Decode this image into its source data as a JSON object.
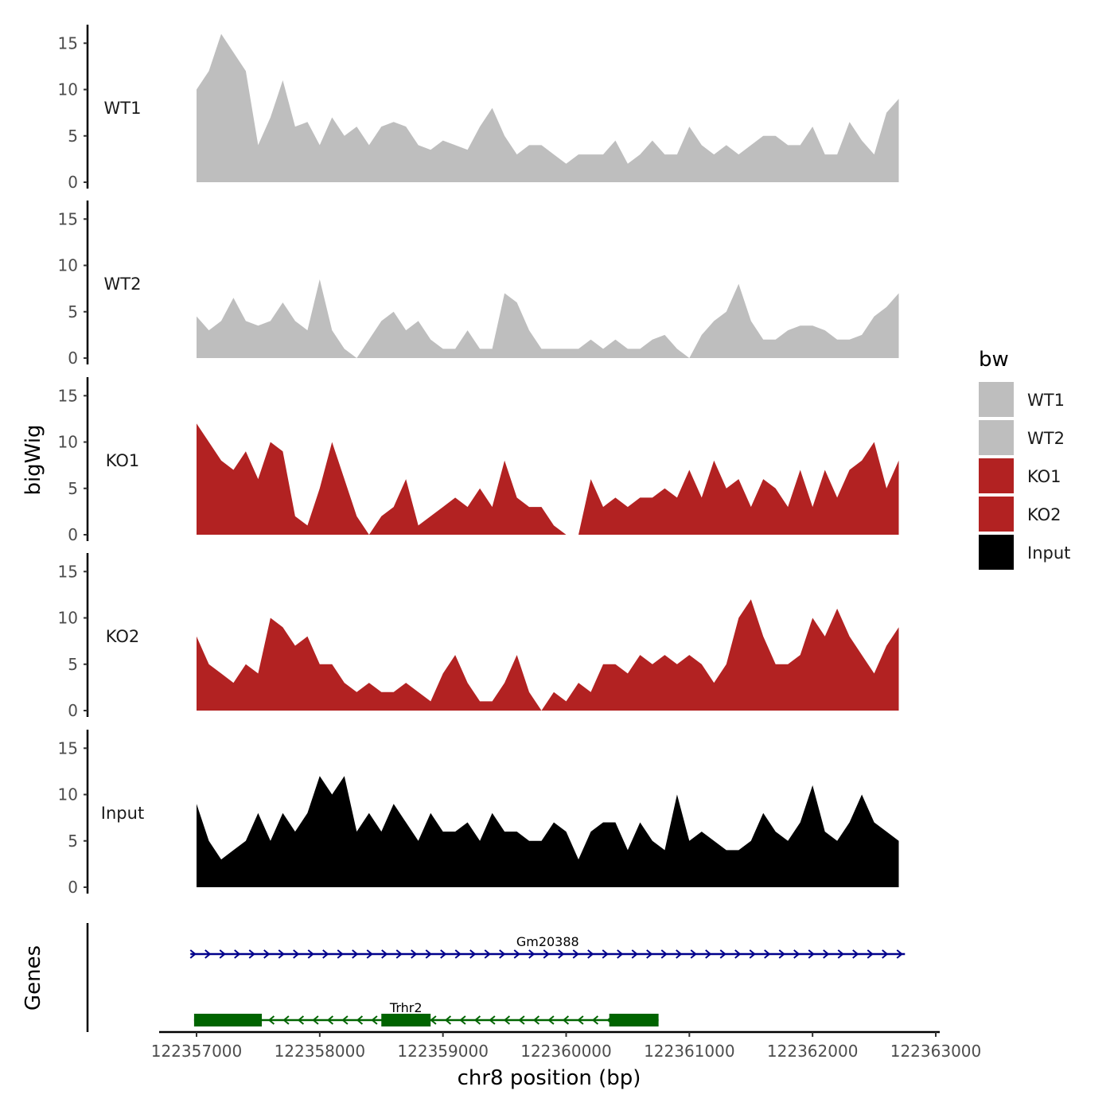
{
  "colors": {
    "WT1": "#BEBEBE",
    "WT2": "#BEBEBE",
    "KO1": "#B22222",
    "KO2": "#B22222",
    "Input": "#000000",
    "gene_forward": "#00008B",
    "gene_reverse": "#006400"
  },
  "chart_data": {
    "type": "area",
    "title": "",
    "ylabel": "bigWig",
    "xlabel": "chr8 position (bp)",
    "gene_track_label": "Genes",
    "xlim": [
      122356700,
      122363050
    ],
    "x_ticks": [
      122357000,
      122358000,
      122359000,
      122360000,
      122361000,
      122362000,
      122363000
    ],
    "x_tick_labels": [
      "122357000",
      "122358000",
      "122359000",
      "122360000",
      "122361000",
      "122362000",
      "122363000"
    ],
    "ylim": [
      0,
      17
    ],
    "y_ticks": [
      0,
      5,
      10,
      15
    ],
    "y_tick_labels": [
      "0",
      "5",
      "10",
      "15"
    ],
    "x": [
      122357000,
      122357100,
      122357200,
      122357300,
      122357400,
      122357500,
      122357600,
      122357700,
      122357800,
      122357900,
      122358000,
      122358100,
      122358200,
      122358300,
      122358400,
      122358500,
      122358600,
      122358700,
      122358800,
      122358900,
      122359000,
      122359100,
      122359200,
      122359300,
      122359400,
      122359500,
      122359600,
      122359700,
      122359800,
      122359900,
      122360000,
      122360100,
      122360200,
      122360300,
      122360400,
      122360500,
      122360600,
      122360700,
      122360800,
      122360900,
      122361000,
      122361100,
      122361200,
      122361300,
      122361400,
      122361500,
      122361600,
      122361700,
      122361800,
      122361900,
      122362000,
      122362100,
      122362200,
      122362300,
      122362400,
      122362500,
      122362600,
      122362700
    ],
    "series": [
      {
        "name": "WT1",
        "values": [
          10,
          12,
          16,
          14,
          12,
          4,
          7,
          11,
          6,
          6.5,
          4,
          7,
          5,
          6,
          4,
          6,
          6.5,
          6,
          4,
          3.5,
          4.5,
          4,
          3.5,
          6,
          8,
          5,
          3,
          4,
          4,
          3,
          2,
          3,
          3,
          3,
          4.5,
          2,
          3,
          4.5,
          3,
          3,
          6,
          4,
          3,
          4,
          3,
          4,
          5,
          5,
          4,
          4,
          6,
          3,
          3,
          6.5,
          4.5,
          3,
          7.5,
          9
        ]
      },
      {
        "name": "WT2",
        "values": [
          4.5,
          3,
          4,
          6.5,
          4,
          3.5,
          4,
          6,
          4,
          3,
          8.5,
          3,
          1,
          0,
          2,
          4,
          5,
          3,
          4,
          2,
          1,
          1,
          3,
          1,
          1,
          7,
          6,
          3,
          1,
          1,
          1,
          1,
          2,
          1,
          2,
          1,
          1,
          2,
          2.5,
          1,
          0,
          2.5,
          4,
          5,
          8,
          4,
          2,
          2,
          3,
          3.5,
          3.5,
          3,
          2,
          2,
          2.5,
          4.5,
          5.5,
          7
        ]
      },
      {
        "name": "KO1",
        "values": [
          12,
          10,
          8,
          7,
          9,
          6,
          10,
          9,
          2,
          1,
          5,
          10,
          6,
          2,
          0,
          2,
          3,
          6,
          1,
          2,
          3,
          4,
          3,
          5,
          3,
          8,
          4,
          3,
          3,
          1,
          0,
          0,
          6,
          3,
          4,
          3,
          4,
          4,
          5,
          4,
          7,
          4,
          8,
          5,
          6,
          3,
          6,
          5,
          3,
          7,
          3,
          7,
          4,
          7,
          8,
          10,
          5,
          8
        ]
      },
      {
        "name": "KO2",
        "values": [
          8,
          5,
          4,
          3,
          5,
          4,
          10,
          9,
          7,
          8,
          5,
          5,
          3,
          2,
          3,
          2,
          2,
          3,
          2,
          1,
          4,
          6,
          3,
          1,
          1,
          3,
          6,
          2,
          0,
          2,
          1,
          3,
          2,
          5,
          5,
          4,
          6,
          5,
          6,
          5,
          6,
          5,
          3,
          5,
          10,
          12,
          8,
          5,
          5,
          6,
          10,
          8,
          11,
          8,
          6,
          4,
          7,
          9
        ]
      },
      {
        "name": "Input",
        "values": [
          9,
          5,
          3,
          4,
          5,
          8,
          5,
          8,
          6,
          8,
          12,
          10,
          12,
          6,
          8,
          6,
          9,
          7,
          5,
          8,
          6,
          6,
          7,
          5,
          8,
          6,
          6,
          5,
          5,
          7,
          6,
          3,
          6,
          7,
          7,
          4,
          7,
          5,
          4,
          10,
          5,
          6,
          5,
          4,
          4,
          5,
          8,
          6,
          5,
          7,
          11,
          6,
          5,
          7,
          10,
          7,
          6,
          5
        ]
      }
    ],
    "track_labels": [
      "WT1",
      "WT2",
      "KO1",
      "KO2",
      "Input"
    ],
    "legend": {
      "title": "bw",
      "entries": [
        "WT1",
        "WT2",
        "KO1",
        "KO2",
        "Input"
      ],
      "position": "right"
    },
    "genes": [
      {
        "name": "Gm20388",
        "start": 122356950,
        "end": 122362750,
        "strand": "+",
        "exons": []
      },
      {
        "name": "Trhr2",
        "start": 122356980,
        "end": 122360750,
        "strand": "-",
        "exons": [
          [
            122356980,
            122357530
          ],
          [
            122358500,
            122358900
          ],
          [
            122360350,
            122360750
          ]
        ]
      }
    ]
  }
}
